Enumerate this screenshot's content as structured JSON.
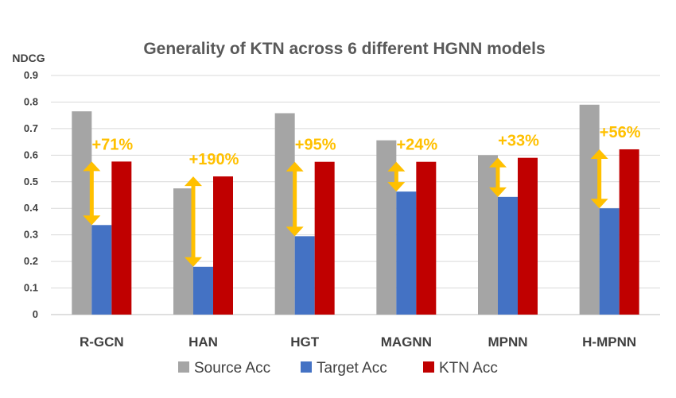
{
  "chart_data": {
    "type": "bar",
    "title": "Generality of KTN across 6 different HGNN models",
    "ylabel": "NDCG",
    "xlabel": "",
    "ylim": [
      0,
      0.9
    ],
    "yticks": [
      "0",
      "0.1",
      "0.2",
      "0.3",
      "0.4",
      "0.5",
      "0.6",
      "0.7",
      "0.8",
      "0.9"
    ],
    "grid": true,
    "legend_position": "bottom",
    "categories": [
      "R-GCN",
      "HAN",
      "HGT",
      "MAGNN",
      "MPNN",
      "H-MPNN"
    ],
    "series": [
      {
        "name": "Source Acc",
        "color": "#a5a5a5",
        "values": [
          0.765,
          0.475,
          0.758,
          0.656,
          0.6,
          0.79
        ]
      },
      {
        "name": "Target Acc",
        "color": "#4472c4",
        "values": [
          0.337,
          0.18,
          0.295,
          0.463,
          0.443,
          0.4
        ]
      },
      {
        "name": "KTN Acc",
        "color": "#c00000",
        "values": [
          0.576,
          0.52,
          0.575,
          0.575,
          0.59,
          0.622
        ]
      }
    ],
    "annotations": [
      "+71%",
      "+190%",
      "+95%",
      "+24%",
      "+33%",
      "+56%"
    ],
    "annotation_color": "#ffc000"
  }
}
